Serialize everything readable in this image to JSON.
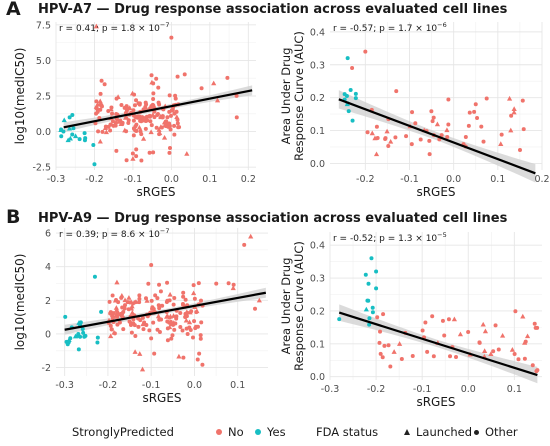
{
  "panels": [
    {
      "letter": "A",
      "title": "HPV-A7 — Drug response association across evaluated cell lines"
    },
    {
      "letter": "B",
      "title": "HPV-A9 — Drug response association across evaluated cell lines"
    }
  ],
  "legend": {
    "group1_title": "StronglyPredicted",
    "no_label": "No",
    "yes_label": "Yes",
    "group2_title": "FDA status",
    "launched_label": "Launched",
    "other_label": "Other"
  },
  "colors": {
    "no": "#f0736b",
    "yes": "#17bec3",
    "fit": "#000000",
    "band": "#cfcfcf"
  },
  "chart_data": [
    {
      "type": "scatter",
      "panel": "A",
      "xlabel": "sRGES",
      "ylabel": "log10(medIC50)",
      "annotation_parts": [
        "r = 0.41; p = 1.8 × 10",
        "−7"
      ],
      "xlim": [
        -0.3,
        0.22
      ],
      "ylim": [
        -2.7,
        7.7
      ],
      "xticks": [
        -0.3,
        -0.2,
        -0.1,
        0.0,
        0.1,
        0.2
      ],
      "xtick_labels": [
        "-0.3",
        "-0.2",
        "-0.1",
        "0.0",
        "0.1",
        "0.2"
      ],
      "yticks": [
        -2.5,
        0.0,
        2.5,
        5.0,
        7.5
      ],
      "ytick_labels": [
        "-2.5",
        "0.0",
        "2.5",
        "5.0",
        "7.5"
      ],
      "fit": [
        [
          -0.28,
          0.3
        ],
        [
          0.21,
          2.9
        ]
      ],
      "band_halfwidth": 0.35,
      "seed": 11,
      "clusters": [
        {
          "n": 18,
          "x": [
            -0.29,
            -0.2
          ],
          "y": [
            -1.6,
            1.6
          ],
          "group": "yes"
        },
        {
          "n": 170,
          "x": [
            -0.2,
            0.02
          ],
          "y": [
            -0.8,
            2.7
          ],
          "group": "no"
        },
        {
          "n": 14,
          "x": [
            -0.22,
            0.2
          ],
          "y": [
            2.4,
            4.6
          ],
          "group": "no"
        },
        {
          "n": 10,
          "x": [
            -0.18,
            0.05
          ],
          "y": [
            -2.3,
            -0.9
          ],
          "group": "no"
        }
      ],
      "points": [
        {
          "x": -0.195,
          "y": 7.4,
          "group": "no",
          "fda": "launched"
        },
        {
          "x": 0.0,
          "y": 6.6,
          "group": "no",
          "fda": "other"
        },
        {
          "x": 0.12,
          "y": 2.2,
          "group": "no",
          "fda": "launched"
        },
        {
          "x": 0.17,
          "y": 1.0,
          "group": "no",
          "fda": "other"
        },
        {
          "x": 0.11,
          "y": 3.4,
          "group": "no",
          "fda": "launched"
        },
        {
          "x": -0.2,
          "y": -2.3,
          "group": "yes",
          "fda": "other"
        },
        {
          "x": -0.1,
          "y": -1.9,
          "group": "no",
          "fda": "launched"
        },
        {
          "x": -0.005,
          "y": -1.5,
          "group": "no",
          "fda": "other"
        }
      ]
    },
    {
      "type": "scatter",
      "panel": "A",
      "xlabel": "sRGES",
      "ylabel_lines": [
        "Area Under Drug",
        "Response Curve (AUC)"
      ],
      "annotation_parts": [
        "r = -0.57; p = 1.7 × 10",
        "−6"
      ],
      "xlim": [
        -0.28,
        0.2
      ],
      "ylim": [
        -0.02,
        0.43
      ],
      "xticks": [
        -0.2,
        -0.1,
        0.0,
        0.1,
        0.2
      ],
      "xtick_labels": [
        "-0.2",
        "-0.1",
        "0.0",
        "0.1",
        "0.2"
      ],
      "yticks": [
        0.0,
        0.1,
        0.2,
        0.3,
        0.4
      ],
      "ytick_labels": [
        "0.0",
        "0.1",
        "0.2",
        "0.3",
        "0.4"
      ],
      "fit": [
        [
          -0.26,
          0.195
        ],
        [
          0.185,
          -0.03
        ]
      ],
      "band_halfwidth": 0.028,
      "seed": 23,
      "clusters": [
        {
          "n": 10,
          "x": [
            -0.25,
            -0.21
          ],
          "y": [
            0.08,
            0.3
          ],
          "group": "yes"
        },
        {
          "n": 55,
          "x": [
            -0.2,
            0.16
          ],
          "y": [
            0.0,
            0.22
          ],
          "group": "no"
        }
      ],
      "points": [
        {
          "x": -0.2,
          "y": 0.34,
          "group": "no",
          "fda": "other"
        },
        {
          "x": -0.24,
          "y": 0.32,
          "group": "yes",
          "fda": "other"
        },
        {
          "x": -0.23,
          "y": 0.29,
          "group": "no",
          "fda": "other"
        },
        {
          "x": -0.13,
          "y": 0.22,
          "group": "no",
          "fda": "other"
        },
        {
          "x": 0.05,
          "y": 0.18,
          "group": "no",
          "fda": "other"
        }
      ]
    },
    {
      "type": "scatter",
      "panel": "B",
      "xlabel": "sRGES",
      "ylabel": "log10(medIC50)",
      "annotation_parts": [
        "r = 0.39; p = 8.6 × 10",
        "−7"
      ],
      "xlim": [
        -0.32,
        0.17
      ],
      "ylim": [
        -2.5,
        6.3
      ],
      "xticks": [
        -0.3,
        -0.2,
        -0.1,
        0.0,
        0.1
      ],
      "xtick_labels": [
        "-0.3",
        "-0.2",
        "-0.1",
        "0.0",
        "0.1"
      ],
      "yticks": [
        -2,
        0,
        2,
        4,
        6
      ],
      "ytick_labels": [
        "-2",
        "0",
        "2",
        "4",
        "6"
      ],
      "fit": [
        [
          -0.3,
          0.25
        ],
        [
          0.165,
          2.45
        ]
      ],
      "band_halfwidth": 0.3,
      "seed": 37,
      "clusters": [
        {
          "n": 22,
          "x": [
            -0.3,
            -0.2
          ],
          "y": [
            -1.4,
            1.8
          ],
          "group": "yes"
        },
        {
          "n": 170,
          "x": [
            -0.2,
            0.02
          ],
          "y": [
            -0.5,
            2.6
          ],
          "group": "no"
        },
        {
          "n": 10,
          "x": [
            -0.18,
            0.12
          ],
          "y": [
            2.6,
            3.3
          ],
          "group": "no"
        },
        {
          "n": 8,
          "x": [
            -0.18,
            0.02
          ],
          "y": [
            -2.1,
            -0.9
          ],
          "group": "no"
        }
      ],
      "points": [
        {
          "x": 0.13,
          "y": 5.8,
          "group": "no",
          "fda": "launched"
        },
        {
          "x": 0.115,
          "y": 5.3,
          "group": "no",
          "fda": "other"
        },
        {
          "x": -0.23,
          "y": 3.4,
          "group": "yes",
          "fda": "other"
        },
        {
          "x": -0.1,
          "y": 4.1,
          "group": "no",
          "fda": "other"
        },
        {
          "x": -0.12,
          "y": -2.1,
          "group": "no",
          "fda": "launched"
        },
        {
          "x": 0.14,
          "y": 1.5,
          "group": "no",
          "fda": "other"
        },
        {
          "x": 0.15,
          "y": 2.0,
          "group": "no",
          "fda": "launched"
        }
      ]
    },
    {
      "type": "scatter",
      "panel": "B",
      "xlabel": "sRGES",
      "ylabel_lines": [
        "Area Under Drug",
        "Response Curve (AUC)"
      ],
      "annotation_parts": [
        "r = -0.52; p = 1.3 × 10",
        "−5"
      ],
      "xlim": [
        -0.3,
        0.16
      ],
      "ylim": [
        -0.01,
        0.44
      ],
      "xticks": [
        -0.3,
        -0.2,
        -0.1,
        0.0,
        0.1
      ],
      "xtick_labels": [
        "-0.3",
        "-0.2",
        "-0.1",
        "0.0",
        "0.1"
      ],
      "yticks": [
        0.0,
        0.1,
        0.2,
        0.3,
        0.4
      ],
      "ytick_labels": [
        "0.0",
        "0.1",
        "0.2",
        "0.3",
        "0.4"
      ],
      "fit": [
        [
          -0.28,
          0.195
        ],
        [
          0.15,
          0.005
        ]
      ],
      "band_halfwidth": 0.025,
      "seed": 51,
      "clusters": [
        {
          "n": 10,
          "x": [
            -0.23,
            -0.2
          ],
          "y": [
            0.08,
            0.36
          ],
          "group": "yes"
        },
        {
          "n": 55,
          "x": [
            -0.2,
            0.15
          ],
          "y": [
            0.0,
            0.23
          ],
          "group": "no"
        }
      ],
      "points": [
        {
          "x": -0.28,
          "y": 0.175,
          "group": "yes",
          "fda": "other"
        },
        {
          "x": -0.21,
          "y": 0.36,
          "group": "yes",
          "fda": "other"
        },
        {
          "x": -0.2,
          "y": 0.32,
          "group": "yes",
          "fda": "other"
        },
        {
          "x": 0.15,
          "y": 0.02,
          "group": "no",
          "fda": "other"
        },
        {
          "x": 0.14,
          "y": 0.035,
          "group": "no",
          "fda": "other"
        }
      ]
    }
  ]
}
